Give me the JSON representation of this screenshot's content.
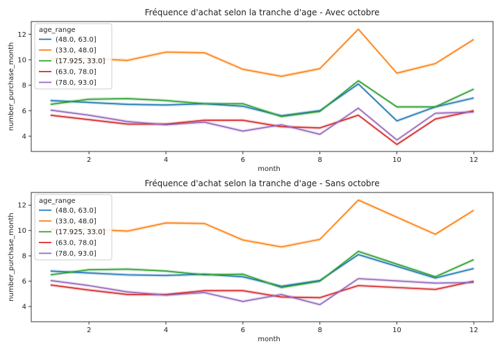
{
  "chart_data": [
    {
      "type": "line",
      "title": "Fréquence d'achat selon la tranche d'age - Avec octobre",
      "xlabel": "month",
      "ylabel": "number_purchase_month",
      "xlim": [
        0.5,
        12.5
      ],
      "ylim": [
        2.8,
        13.0
      ],
      "xticks": [
        2,
        4,
        6,
        8,
        10,
        12
      ],
      "yticks": [
        4,
        6,
        8,
        10,
        12
      ],
      "grid": false,
      "legend_title": "age_range",
      "legend_position": "top-left",
      "x": [
        1,
        2,
        3,
        4,
        5,
        6,
        7,
        8,
        9,
        10,
        11,
        12
      ],
      "series": [
        {
          "name": "(48.0, 63.0]",
          "color": "#1f77b4",
          "values": [
            6.8,
            6.65,
            6.5,
            6.45,
            6.55,
            6.35,
            5.6,
            6.0,
            8.1,
            5.2,
            6.3,
            7.0
          ]
        },
        {
          "name": "(33.0, 48.0]",
          "color": "#ff7f0e",
          "values": [
            10.1,
            10.1,
            9.95,
            10.6,
            10.55,
            9.25,
            8.7,
            9.3,
            12.4,
            8.95,
            9.7,
            11.6
          ]
        },
        {
          "name": "(17.925, 33.0]",
          "color": "#2ca02c",
          "values": [
            6.5,
            6.9,
            6.95,
            6.8,
            6.55,
            6.55,
            5.55,
            5.95,
            8.35,
            6.3,
            6.3,
            7.7
          ]
        },
        {
          "name": "(63.0, 78.0]",
          "color": "#d62728",
          "values": [
            5.65,
            5.3,
            4.95,
            4.95,
            5.25,
            5.25,
            4.75,
            4.65,
            5.65,
            3.35,
            5.35,
            6.0
          ]
        },
        {
          "name": "(78.0, 93.0]",
          "color": "#9467bd",
          "values": [
            6.05,
            5.65,
            5.15,
            4.9,
            5.1,
            4.4,
            4.9,
            4.15,
            6.2,
            3.7,
            5.8,
            5.9
          ]
        }
      ]
    },
    {
      "type": "line",
      "title": "Fréquence d'achat selon la tranche d'age - Sans octobre",
      "xlabel": "month",
      "ylabel": "number_purchase_month",
      "xlim": [
        0.5,
        12.5
      ],
      "ylim": [
        2.8,
        13.0
      ],
      "xticks": [
        2,
        4,
        6,
        8,
        10,
        12
      ],
      "yticks": [
        4,
        6,
        8,
        10,
        12
      ],
      "grid": false,
      "legend_title": "age_range",
      "legend_position": "top-left",
      "x": [
        1,
        2,
        3,
        4,
        5,
        6,
        7,
        8,
        9,
        11,
        12
      ],
      "series": [
        {
          "name": "(48.0, 63.0]",
          "color": "#1f77b4",
          "values": [
            6.8,
            6.65,
            6.5,
            6.45,
            6.55,
            6.35,
            5.6,
            6.05,
            8.1,
            6.25,
            7.0
          ]
        },
        {
          "name": "(33.0, 48.0]",
          "color": "#ff7f0e",
          "values": [
            10.1,
            10.1,
            9.95,
            10.6,
            10.55,
            9.25,
            8.7,
            9.3,
            12.4,
            9.7,
            11.6
          ]
        },
        {
          "name": "(17.925, 33.0]",
          "color": "#2ca02c",
          "values": [
            6.5,
            6.9,
            6.95,
            6.8,
            6.5,
            6.55,
            5.5,
            6.0,
            8.35,
            6.35,
            7.7
          ]
        },
        {
          "name": "(63.0, 78.0]",
          "color": "#d62728",
          "values": [
            5.7,
            5.3,
            4.95,
            4.95,
            5.25,
            5.25,
            4.75,
            4.7,
            5.65,
            5.35,
            6.0
          ]
        },
        {
          "name": "(78.0, 93.0]",
          "color": "#9467bd",
          "values": [
            6.05,
            5.65,
            5.15,
            4.9,
            5.1,
            4.4,
            4.95,
            4.15,
            6.2,
            5.85,
            5.9
          ]
        }
      ]
    }
  ]
}
